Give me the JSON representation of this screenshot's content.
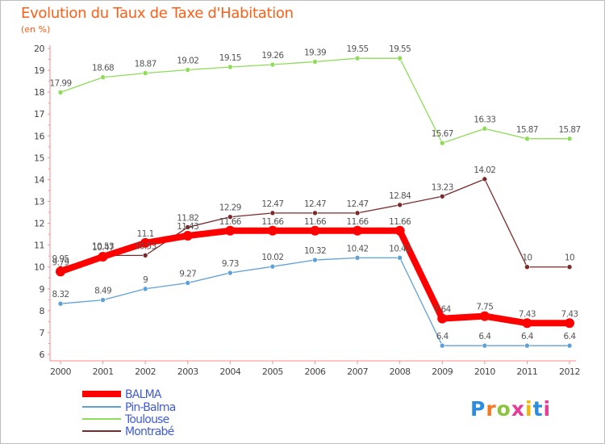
{
  "title": "Evolution du Taux de Taxe d'Habitation",
  "subtitle": "(en %)",
  "logo_text": "Proxiti",
  "chart_data": {
    "type": "line",
    "title": "Evolution du Taux de Taxe d'Habitation",
    "subtitle": "(en %)",
    "xlabel": "",
    "ylabel": "",
    "x": [
      "2000",
      "2001",
      "2002",
      "2003",
      "2004",
      "2005",
      "2006",
      "2007",
      "2008",
      "2009",
      "2010",
      "2011",
      "2012"
    ],
    "ylim": [
      6,
      20
    ],
    "yticks": [
      6,
      7,
      8,
      9,
      10,
      11,
      12,
      13,
      14,
      15,
      16,
      17,
      18,
      19,
      20
    ],
    "grid": false,
    "legend_position": "bottom-left",
    "series": [
      {
        "name": "BALMA",
        "color": "#ff0000",
        "values": [
          9.79,
          10.47,
          11.1,
          11.43,
          11.66,
          11.66,
          11.66,
          11.66,
          11.66,
          7.64,
          7.75,
          7.43,
          7.43
        ],
        "labels": [
          "9.79",
          "10.47",
          "11.1",
          "11.43",
          "11.66",
          "11.66",
          "11.66",
          "11.66",
          "11.66",
          "7.64",
          "7.75",
          "7.43",
          "7.43"
        ]
      },
      {
        "name": "Pin-Balma",
        "color": "#5ea0d8",
        "values": [
          8.32,
          8.49,
          9,
          9.27,
          9.73,
          10.02,
          10.32,
          10.42,
          10.42,
          6.4,
          6.4,
          6.4,
          6.4
        ],
        "labels": [
          "8.32",
          "8.49",
          "9",
          "9.27",
          "9.73",
          "10.02",
          "10.32",
          "10.42",
          "10.42",
          "6.4",
          "6.4",
          "6.4",
          "6.4"
        ]
      },
      {
        "name": "Toulouse",
        "color": "#8fdc58",
        "values": [
          17.99,
          18.68,
          18.87,
          19.02,
          19.15,
          19.26,
          19.39,
          19.55,
          19.55,
          15.67,
          16.33,
          15.87,
          15.87
        ],
        "labels": [
          "17.99",
          "18.68",
          "18.87",
          "19.02",
          "19.15",
          "19.26",
          "19.39",
          "19.55",
          "19.55",
          "15.67",
          "16.33",
          "15.87",
          "15.87"
        ]
      },
      {
        "name": "Montrabé",
        "color": "#7a2a2a",
        "values": [
          9.95,
          10.53,
          10.53,
          11.82,
          12.29,
          12.47,
          12.47,
          12.47,
          12.84,
          13.23,
          14.02,
          10,
          10
        ],
        "labels": [
          "9.95",
          "10.53",
          "10.53",
          "11.82",
          "12.29",
          "12.47",
          "12.47",
          "12.47",
          "12.84",
          "13.23",
          "14.02",
          "10",
          "10"
        ]
      }
    ]
  }
}
